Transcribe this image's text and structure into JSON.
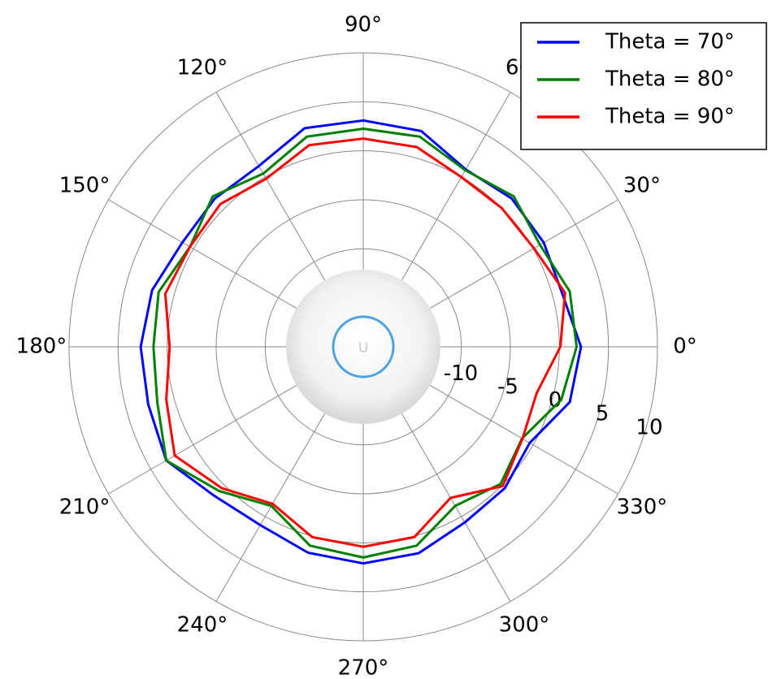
{
  "chart_data": {
    "type": "polar",
    "theta": [
      0,
      15,
      30,
      45,
      60,
      75,
      90,
      105,
      120,
      135,
      150,
      165,
      180,
      195,
      210,
      225,
      240,
      255,
      270,
      285,
      300,
      315,
      330,
      345
    ],
    "series": [
      {
        "name": "Theta = 70°",
        "color": "#0000ff",
        "values": [
          2.2,
          1.0,
          1.25,
          1.4,
          0.9,
          2.8,
          3.1,
          3.1,
          1.3,
          1.4,
          1.3,
          2.3,
          2.7,
          2.7,
          3.2,
          1.5,
          1.0,
          1.75,
          2.1,
          1.8,
          0.7,
          0.4,
          -0.4,
          1.8
        ]
      },
      {
        "name": "Theta = 80°",
        "color": "#008000",
        "values": [
          1.75,
          1.8,
          0.8,
          1.7,
          0.8,
          2.2,
          2.25,
          2.2,
          0.4,
          1.7,
          0.4,
          1.6,
          1.4,
          1.75,
          3.2,
          0.8,
          -1.25,
          1.0,
          1.5,
          1.0,
          -1.25,
          -0.2,
          -1.3,
          0.9
        ]
      },
      {
        "name": "Theta = 90°",
        "color": "#ff0000",
        "values": [
          0.1,
          1.3,
          0.1,
          0,
          0,
          1.1,
          1.25,
          1.3,
          -0.2,
          0.6,
          0.4,
          0.9,
          -0.25,
          0.8,
          2.2,
          0.4,
          -1.5,
          0.1,
          0.4,
          0.1,
          -2.2,
          0.1,
          -1.25,
          -1.7
        ]
      }
    ],
    "rlim": [
      -20,
      10
    ],
    "rticks": [
      -10,
      -5,
      0,
      5,
      10
    ],
    "thetaticks": [
      {
        "value": 0,
        "label": "0°"
      },
      {
        "value": 30,
        "label": "30°"
      },
      {
        "value": 60,
        "label": "60°"
      },
      {
        "value": 90,
        "label": "90°"
      },
      {
        "value": 120,
        "label": "120°"
      },
      {
        "value": 150,
        "label": "150°"
      },
      {
        "value": 180,
        "label": "180°"
      },
      {
        "value": 210,
        "label": "210°"
      },
      {
        "value": 240,
        "label": "240°"
      },
      {
        "value": 270,
        "label": "270°"
      },
      {
        "value": 300,
        "label": "300°"
      },
      {
        "value": 330,
        "label": "330°"
      }
    ],
    "grid": true,
    "legend": "upper right"
  }
}
